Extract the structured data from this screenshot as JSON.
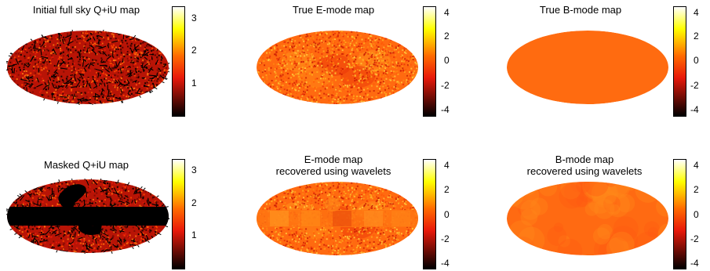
{
  "figure": {
    "panels": [
      {
        "id": "p1",
        "title": "Initial full sky Q+iU map",
        "style": "heat-textured",
        "colorbar": {
          "scale": "hot",
          "ticks": [
            "3",
            "2",
            "1"
          ],
          "tick_values": [
            3,
            2,
            1
          ],
          "range": [
            0,
            3.3
          ]
        }
      },
      {
        "id": "p2",
        "title": "True E-mode map",
        "style": "noisy-orange",
        "colorbar": {
          "scale": "hot-diverging",
          "ticks": [
            "4",
            "2",
            "0",
            "-2",
            "-4"
          ],
          "tick_values": [
            4,
            2,
            0,
            -2,
            -4
          ],
          "range": [
            -4,
            4
          ]
        }
      },
      {
        "id": "p3",
        "title": "True B-mode map",
        "style": "flat",
        "colorbar": {
          "scale": "hot-diverging",
          "ticks": [
            "4",
            "2",
            "0",
            "-2",
            "-4"
          ],
          "tick_values": [
            4,
            2,
            0,
            -2,
            -4
          ],
          "range": [
            -4,
            4
          ]
        }
      },
      {
        "id": "p4",
        "title": "Masked Q+iU map",
        "style": "heat-masked",
        "colorbar": {
          "scale": "hot",
          "ticks": [
            "3",
            "2",
            "1"
          ],
          "tick_values": [
            3,
            2,
            1
          ],
          "range": [
            0,
            3.3
          ]
        }
      },
      {
        "id": "p5",
        "title": "E-mode map\nrecovered using wavelets",
        "style": "noisy-orange-banded",
        "colorbar": {
          "scale": "hot-diverging",
          "ticks": [
            "4",
            "2",
            "0",
            "-2",
            "-4"
          ],
          "tick_values": [
            4,
            2,
            0,
            -2,
            -4
          ],
          "range": [
            -4,
            4
          ]
        }
      },
      {
        "id": "p6",
        "title": "B-mode map\nrecovered using wavelets",
        "style": "smooth-orange",
        "colorbar": {
          "scale": "hot-diverging",
          "ticks": [
            "4",
            "2",
            "0",
            "-2",
            "-4"
          ],
          "tick_values": [
            4,
            2,
            0,
            -2,
            -4
          ],
          "range": [
            -4,
            4
          ]
        }
      }
    ],
    "colors": {
      "hot_black": "#000000",
      "hot_red": "#e8190a",
      "hot_orange": "#ff6a00",
      "hot_yellow": "#ffff00",
      "hot_white": "#ffffff",
      "flat_orange": "#ff6b10"
    }
  }
}
